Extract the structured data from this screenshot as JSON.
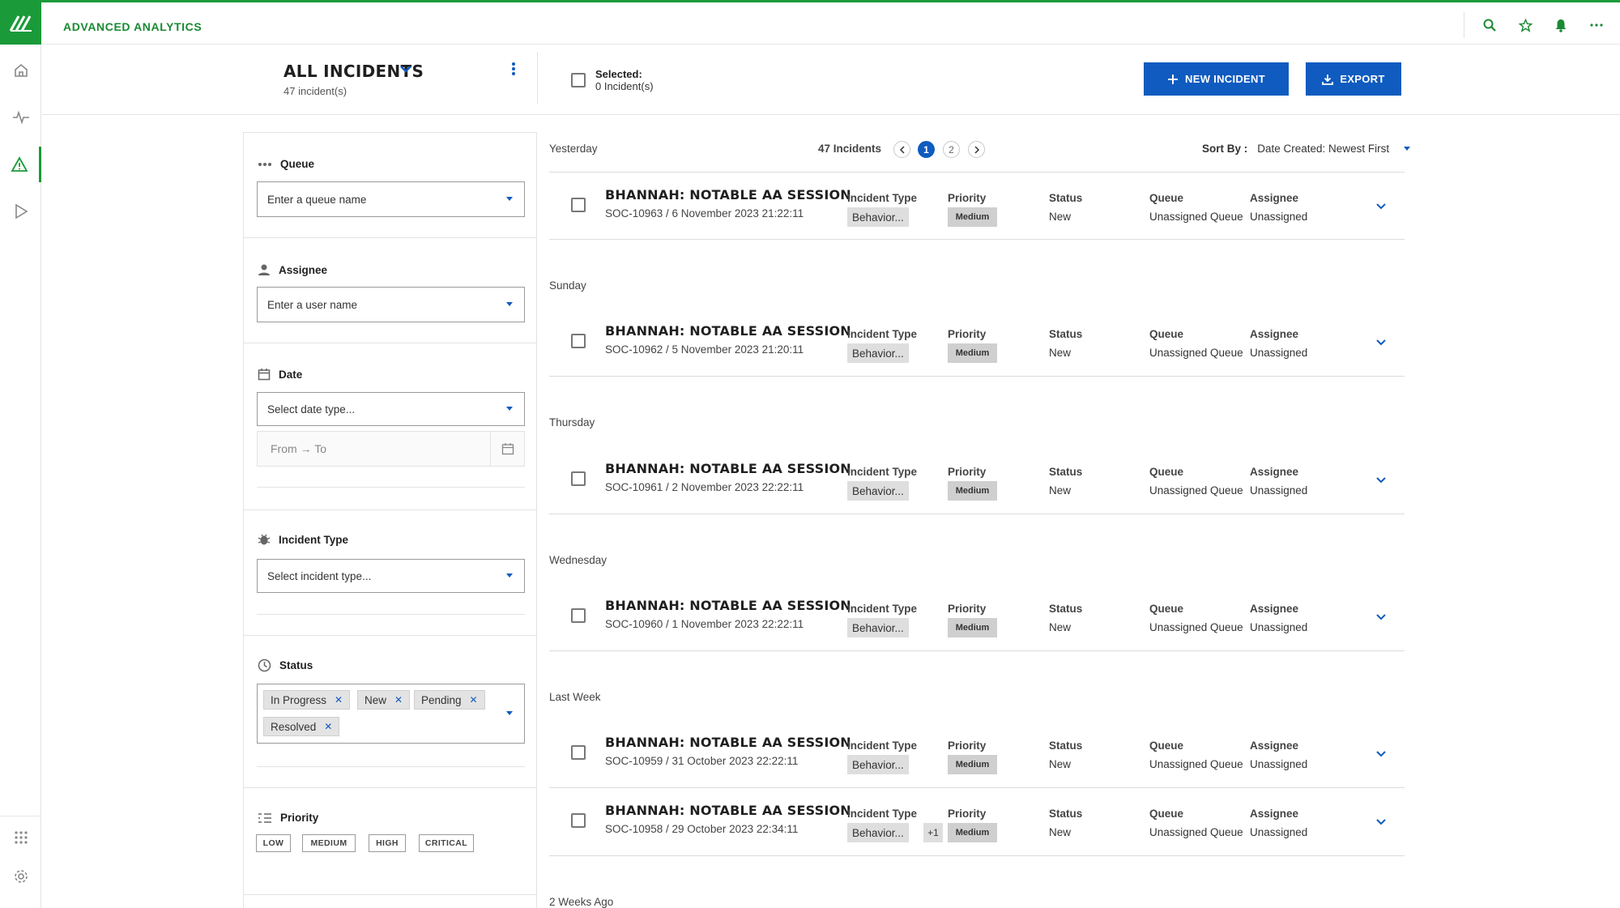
{
  "app": {
    "title": "ADVANCED ANALYTICS"
  },
  "topbar_icons": [
    "search-icon",
    "star-icon",
    "bell-icon",
    "more-icon"
  ],
  "nav": [
    "home-icon",
    "activity-icon",
    "alert-icon",
    "play-icon",
    "apps-grid-icon",
    "settings-icon"
  ],
  "header": {
    "title": "ALL INCIDENTS",
    "subtitle": "47 incident(s)",
    "selected_label": "Selected:",
    "selected_count": "0 Incident(s)",
    "new_incident": "NEW INCIDENT",
    "export": "EXPORT"
  },
  "filters": {
    "queue": {
      "label": "Queue",
      "placeholder": "Enter a queue name"
    },
    "assignee": {
      "label": "Assignee",
      "placeholder": "Enter a user name"
    },
    "date": {
      "label": "Date",
      "placeholder": "Select date type...",
      "range": "From → To"
    },
    "incident_type": {
      "label": "Incident Type",
      "placeholder": "Select incident type..."
    },
    "status": {
      "label": "Status",
      "tags": [
        "In Progress",
        "New",
        "Pending",
        "Resolved"
      ]
    },
    "priority": {
      "label": "Priority",
      "options": [
        "LOW",
        "MEDIUM",
        "HIGH",
        "CRITICAL"
      ]
    }
  },
  "list": {
    "count": "47 Incidents",
    "pages": [
      "1",
      "2"
    ],
    "current_page": "1",
    "sort_label": "Sort By :",
    "sort_value": "Date Created: Newest First",
    "columns": {
      "type": "Incident Type",
      "priority": "Priority",
      "status": "Status",
      "queue": "Queue",
      "assignee": "Assignee"
    },
    "groups": [
      "Yesterday",
      "Sunday",
      "Thursday",
      "Wednesday",
      "Last Week",
      "2 Weeks Ago"
    ],
    "incidents": [
      {
        "title": "BHANNAH: NOTABLE AA SESSION",
        "sub": "SOC-10963 / 6 November 2023 21:22:11",
        "type": "Behavior...",
        "extra": "",
        "priority": "Medium",
        "status": "New",
        "queue": "Unassigned Queue",
        "assignee": "Unassigned"
      },
      {
        "title": "BHANNAH: NOTABLE AA SESSION",
        "sub": "SOC-10962 / 5 November 2023 21:20:11",
        "type": "Behavior...",
        "extra": "",
        "priority": "Medium",
        "status": "New",
        "queue": "Unassigned Queue",
        "assignee": "Unassigned"
      },
      {
        "title": "BHANNAH: NOTABLE AA SESSION",
        "sub": "SOC-10961 / 2 November 2023 22:22:11",
        "type": "Behavior...",
        "extra": "",
        "priority": "Medium",
        "status": "New",
        "queue": "Unassigned Queue",
        "assignee": "Unassigned"
      },
      {
        "title": "BHANNAH: NOTABLE AA SESSION",
        "sub": "SOC-10960 / 1 November 2023 22:22:11",
        "type": "Behavior...",
        "extra": "",
        "priority": "Medium",
        "status": "New",
        "queue": "Unassigned Queue",
        "assignee": "Unassigned"
      },
      {
        "title": "BHANNAH: NOTABLE AA SESSION",
        "sub": "SOC-10959 / 31 October 2023 22:22:11",
        "type": "Behavior...",
        "extra": "",
        "priority": "Medium",
        "status": "New",
        "queue": "Unassigned Queue",
        "assignee": "Unassigned"
      },
      {
        "title": "BHANNAH: NOTABLE AA SESSION",
        "sub": "SOC-10958 / 29 October 2023 22:34:11",
        "type": "Behavior...",
        "extra": "+1",
        "priority": "Medium",
        "status": "New",
        "queue": "Unassigned Queue",
        "assignee": "Unassigned"
      }
    ]
  },
  "colors": {
    "brand_green": "#1a9a39",
    "primary_blue": "#0f5bbf"
  }
}
